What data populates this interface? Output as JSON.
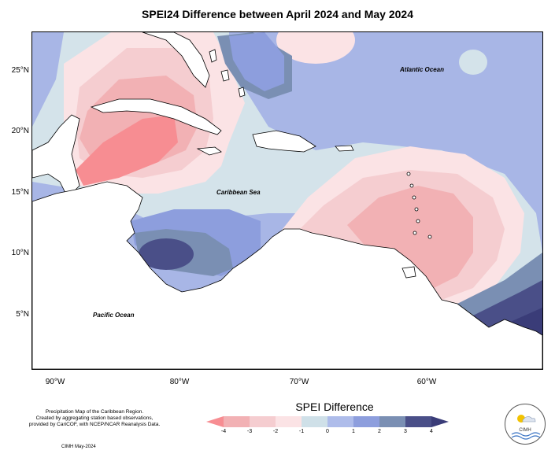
{
  "title": "SPEI24 Difference between April 2024 and May 2024",
  "lat_labels": [
    "25°N",
    "20°N",
    "15°N",
    "10°N",
    "5°N"
  ],
  "lon_labels": [
    "90°W",
    "80°W",
    "70°W",
    "60°W"
  ],
  "ocean_labels": {
    "atlantic": "Atlantic Ocean",
    "caribbean": "Caribbean Sea",
    "pacific": "Pacific Ocean"
  },
  "credit_lines": [
    "Precipitation Map of the Caribbean Region.",
    "Created by aggregating station based observations,",
    "provided by CariCOF, with NCEP/NCAR Reanalysis Data."
  ],
  "credit_date": "CIMH May-2024",
  "legend": {
    "title": "SPEI Difference",
    "ticks": [
      "-4",
      "-3",
      "-2",
      "-1",
      "0",
      "1",
      "2",
      "3",
      "4"
    ],
    "colors": [
      "#f78d92",
      "#f2b1b4",
      "#f5cdd0",
      "#fbe3e5",
      "#cfe0e8",
      "#aebcea",
      "#8d9edd",
      "#7a8fb3",
      "#4a4f88",
      "#3a3c78"
    ]
  },
  "logo_text": "CIMH"
}
